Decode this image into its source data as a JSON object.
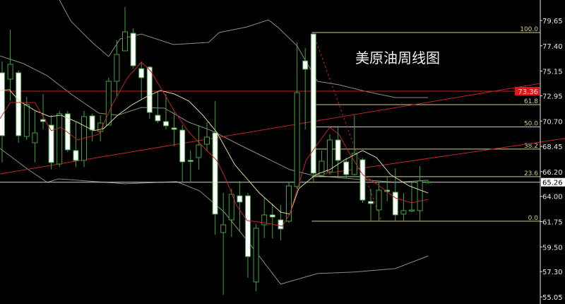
{
  "chart_data": {
    "type": "candlestick",
    "title": "美原油周线图",
    "colors": {
      "background": "#000000",
      "up_candle": "#3fa33f",
      "down_candle_fill": "#ffffff",
      "bands": "#7e947e",
      "ma_red": "#c0262a",
      "ma_yellow": "#d8d49a",
      "fib": "#d2cf86",
      "trend_line": "#c0262a",
      "axis": "#e6e6e6"
    },
    "y_axis": {
      "position": "right",
      "range": [
        55.05,
        79.65
      ],
      "ticks": [
        "79.65",
        "77.40",
        "75.15",
        "72.95",
        "70.70",
        "68.45",
        "66.20",
        "64.00",
        "61.75",
        "59.50",
        "57.30",
        "55.05"
      ]
    },
    "candles": [
      {
        "o": 75.0,
        "h": 76.0,
        "l": 67.01,
        "c": 69.4
      },
      {
        "o": 74.43,
        "h": 78.83,
        "l": 72.48,
        "c": 75.75
      },
      {
        "o": 75.0,
        "h": 75.2,
        "l": 68.77,
        "c": 69.4
      },
      {
        "o": 69.33,
        "h": 72.86,
        "l": 69.02,
        "c": 72.17
      },
      {
        "o": 68.77,
        "h": 71.6,
        "l": 67.01,
        "c": 69.65
      },
      {
        "o": 70.84,
        "h": 73.11,
        "l": 69.96,
        "c": 70.66
      },
      {
        "o": 70.34,
        "h": 71.22,
        "l": 66.4,
        "c": 67.01
      },
      {
        "o": 66.88,
        "h": 71.6,
        "l": 66.6,
        "c": 71.35
      },
      {
        "o": 71.35,
        "h": 71.6,
        "l": 67.95,
        "c": 68.14
      },
      {
        "o": 68.08,
        "h": 70.66,
        "l": 66.6,
        "c": 67.2
      },
      {
        "o": 67.2,
        "h": 71.6,
        "l": 66.6,
        "c": 71.1
      },
      {
        "o": 71.16,
        "h": 71.35,
        "l": 68.89,
        "c": 69.9
      },
      {
        "o": 69.78,
        "h": 71.22,
        "l": 68.89,
        "c": 70.53
      },
      {
        "o": 70.34,
        "h": 74.56,
        "l": 70.34,
        "c": 74.24
      },
      {
        "o": 74.24,
        "h": 77.89,
        "l": 72.86,
        "c": 76.63
      },
      {
        "o": 76.95,
        "h": 80.85,
        "l": 76.95,
        "c": 78.64
      },
      {
        "o": 78.52,
        "h": 78.96,
        "l": 75.37,
        "c": 75.62
      },
      {
        "o": 75.37,
        "h": 76.0,
        "l": 72.67,
        "c": 74.56
      },
      {
        "o": 75.5,
        "h": 75.6,
        "l": 70.9,
        "c": 71.47
      },
      {
        "o": 71.22,
        "h": 73.3,
        "l": 70.53,
        "c": 70.72
      },
      {
        "o": 70.66,
        "h": 73.11,
        "l": 69.96,
        "c": 70.28
      },
      {
        "o": 70.09,
        "h": 71.47,
        "l": 68.45,
        "c": 69.96
      },
      {
        "o": 69.9,
        "h": 70.34,
        "l": 65.31,
        "c": 67.07
      },
      {
        "o": 67.2,
        "h": 68.08,
        "l": 65.31,
        "c": 67.13
      },
      {
        "o": 67.45,
        "h": 70.34,
        "l": 66.4,
        "c": 68.58
      },
      {
        "o": 68.64,
        "h": 70.59,
        "l": 68.02,
        "c": 69.27
      },
      {
        "o": 69.65,
        "h": 72.48,
        "l": 60.59,
        "c": 62.42
      },
      {
        "o": 60.78,
        "h": 64.3,
        "l": 55.25,
        "c": 61.47
      },
      {
        "o": 61.91,
        "h": 64.68,
        "l": 60.4,
        "c": 64.18
      },
      {
        "o": 64.05,
        "h": 65.37,
        "l": 60.84,
        "c": 63.49
      },
      {
        "o": 64.05,
        "h": 64.3,
        "l": 56.76,
        "c": 58.64
      },
      {
        "o": 56.38,
        "h": 61.54,
        "l": 55.56,
        "c": 61.16
      },
      {
        "o": 61.47,
        "h": 63.86,
        "l": 60.28,
        "c": 62.35
      },
      {
        "o": 62.35,
        "h": 63.36,
        "l": 60.25,
        "c": 62.16
      },
      {
        "o": 61.91,
        "h": 63.23,
        "l": 60.09,
        "c": 61.1
      },
      {
        "o": 61.79,
        "h": 65.31,
        "l": 61.66,
        "c": 64.93
      },
      {
        "o": 64.87,
        "h": 77.7,
        "l": 64.68,
        "c": 73.23
      },
      {
        "o": 76.06,
        "h": 77.2,
        "l": 69.96,
        "c": 75.31
      },
      {
        "o": 78.45,
        "h": 78.6,
        "l": 65.2,
        "c": 66.06
      },
      {
        "o": 65.87,
        "h": 68.08,
        "l": 65.81,
        "c": 67.13
      },
      {
        "o": 66.19,
        "h": 69.52,
        "l": 65.94,
        "c": 69.02
      },
      {
        "o": 69.02,
        "h": 70.28,
        "l": 65.81,
        "c": 67.2
      },
      {
        "o": 67.07,
        "h": 67.45,
        "l": 65.6,
        "c": 65.94
      },
      {
        "o": 65.94,
        "h": 71.22,
        "l": 65.87,
        "c": 67.83
      },
      {
        "o": 67.26,
        "h": 67.45,
        "l": 63.42,
        "c": 63.67
      },
      {
        "o": 63.55,
        "h": 64.68,
        "l": 61.85,
        "c": 63.36
      },
      {
        "o": 62.79,
        "h": 65.31,
        "l": 61.79,
        "c": 64.55
      },
      {
        "o": 64.55,
        "h": 65.75,
        "l": 63.55,
        "c": 64.43
      },
      {
        "o": 64.37,
        "h": 66.5,
        "l": 61.85,
        "c": 62.35
      },
      {
        "o": 62.42,
        "h": 64.3,
        "l": 61.85,
        "c": 62.73
      },
      {
        "o": 62.73,
        "h": 65.31,
        "l": 62.6,
        "c": 62.79
      },
      {
        "o": 62.73,
        "h": 66.69,
        "l": 61.85,
        "c": 65.37
      },
      {
        "o": 65.26,
        "h": 65.4,
        "l": 65.12,
        "c": 65.31
      }
    ],
    "indicators": {
      "bollinger_upper": [
        [
          8,
          81.47
        ],
        [
          9.4,
          79.59
        ],
        [
          12,
          77.7
        ],
        [
          14,
          76.44
        ],
        [
          15.4,
          78.01
        ],
        [
          18,
          78.45
        ],
        [
          21.9,
          77.51
        ],
        [
          26.2,
          77.7
        ],
        [
          27.5,
          78.58
        ],
        [
          30.9,
          79.08
        ],
        [
          33.5,
          79.71
        ],
        [
          34.8,
          78.96
        ],
        [
          37,
          77.39
        ],
        [
          39.5,
          74.24
        ],
        [
          42.1,
          73.93
        ],
        [
          45.6,
          73.3
        ],
        [
          49,
          72.79
        ],
        [
          53,
          72.79
        ]
      ],
      "bollinger_middle": [
        [
          0.74,
          76.5
        ],
        [
          3.6,
          75.81
        ],
        [
          6.5,
          74.74
        ],
        [
          9.4,
          73.11
        ],
        [
          12.8,
          71.41
        ],
        [
          15.1,
          71.22
        ],
        [
          18,
          71.91
        ],
        [
          20.8,
          71.85
        ],
        [
          23.8,
          70.59
        ],
        [
          26.6,
          69.84
        ],
        [
          30,
          68.58
        ],
        [
          33.5,
          67.32
        ],
        [
          36.1,
          66.38
        ],
        [
          38.9,
          65.87
        ],
        [
          43.8,
          65.56
        ],
        [
          49,
          65.25
        ],
        [
          53,
          65.44
        ]
      ],
      "bollinger_lower": [
        [
          0.74,
          68.27
        ],
        [
          4.2,
          66.38
        ],
        [
          6.5,
          65.25
        ],
        [
          7.9,
          65.56
        ],
        [
          16,
          65.12
        ],
        [
          22.3,
          65.31
        ],
        [
          25.1,
          64.49
        ],
        [
          28.1,
          62.6
        ],
        [
          30.9,
          60.09
        ],
        [
          35,
          56.19
        ],
        [
          39.5,
          57.13
        ],
        [
          43.8,
          57.26
        ],
        [
          49,
          57.57
        ],
        [
          53,
          58.7
        ]
      ],
      "ma_red": [
        [
          0.74,
          70.91
        ],
        [
          2,
          72.35
        ],
        [
          5,
          72.35
        ],
        [
          7,
          69.84
        ],
        [
          8.2,
          70.15
        ],
        [
          10.2,
          69.02
        ],
        [
          12.8,
          69.52
        ],
        [
          14.5,
          72.23
        ],
        [
          16.3,
          74.56
        ],
        [
          18,
          75.94
        ],
        [
          19.1,
          75.18
        ],
        [
          20.8,
          73.11
        ],
        [
          22,
          71.6
        ],
        [
          23.8,
          69.71
        ],
        [
          25.5,
          68.45
        ],
        [
          27.2,
          67.2
        ],
        [
          28.3,
          65.56
        ],
        [
          29.6,
          63.23
        ],
        [
          30.9,
          61.85
        ],
        [
          32.9,
          61.66
        ],
        [
          35.2,
          61.35
        ],
        [
          36.1,
          62.42
        ],
        [
          38.1,
          67.2
        ],
        [
          39.3,
          68.45
        ],
        [
          41,
          70.15
        ],
        [
          42.1,
          69.52
        ],
        [
          43.2,
          68.08
        ],
        [
          45,
          65.94
        ],
        [
          46.7,
          65.12
        ],
        [
          49,
          63.86
        ],
        [
          51,
          63.42
        ],
        [
          53,
          63.74
        ]
      ],
      "ma_yellow": [
        [
          0.74,
          73.42
        ],
        [
          1.9,
          73.49
        ],
        [
          3.1,
          72.48
        ],
        [
          5.1,
          71.6
        ],
        [
          6.8,
          71.1
        ],
        [
          8.2,
          71.22
        ],
        [
          10.2,
          70.59
        ],
        [
          12.2,
          69.84
        ],
        [
          13.4,
          70.03
        ],
        [
          15.1,
          71.22
        ],
        [
          16.9,
          72.17
        ],
        [
          18.6,
          72.86
        ],
        [
          20.3,
          73.42
        ],
        [
          22,
          73.11
        ],
        [
          23.8,
          72.48
        ],
        [
          25.5,
          71.22
        ],
        [
          27.2,
          69.71
        ],
        [
          29.4,
          66.82
        ],
        [
          32.4,
          64.3
        ],
        [
          35,
          62.6
        ],
        [
          36.1,
          62.42
        ],
        [
          37.2,
          64.68
        ],
        [
          39.3,
          65.94
        ],
        [
          41,
          66.38
        ],
        [
          42.7,
          67.2
        ],
        [
          45,
          68.08
        ],
        [
          46.7,
          67.45
        ],
        [
          48.4,
          65.94
        ],
        [
          50.7,
          64.93
        ],
        [
          53,
          64.3
        ]
      ]
    },
    "fibonacci": {
      "high": 78.58,
      "low": 61.79,
      "start_index": 38.8,
      "levels": [
        {
          "ratio": 1.0,
          "label": "100.0"
        },
        {
          "ratio": 0.618,
          "label": "61.8"
        },
        {
          "ratio": 0.5,
          "label": "50.0"
        },
        {
          "ratio": 0.382,
          "label": "38.2"
        },
        {
          "ratio": 0.236,
          "label": "23.6"
        },
        {
          "ratio": 0.0,
          "label": "0.0"
        }
      ]
    },
    "trend_lines": [
      {
        "from": [
          0.74,
          66.0
        ],
        "to": [
          66.7,
          74.05
        ],
        "style": "solid"
      },
      {
        "from": [
          38.9,
          65.87
        ],
        "to": [
          69.7,
          69.15
        ],
        "style": "solid"
      },
      {
        "from": [
          39,
          78.45
        ],
        "to": [
          47.3,
          61.79
        ],
        "style": "dashed"
      }
    ],
    "horizontal_lines": [
      {
        "price": 73.36,
        "color": "#c0262a",
        "label": "73.36"
      },
      {
        "price": 65.26,
        "color": "#d0d0d0",
        "label": "65.26"
      }
    ],
    "current_price": "65.26"
  }
}
